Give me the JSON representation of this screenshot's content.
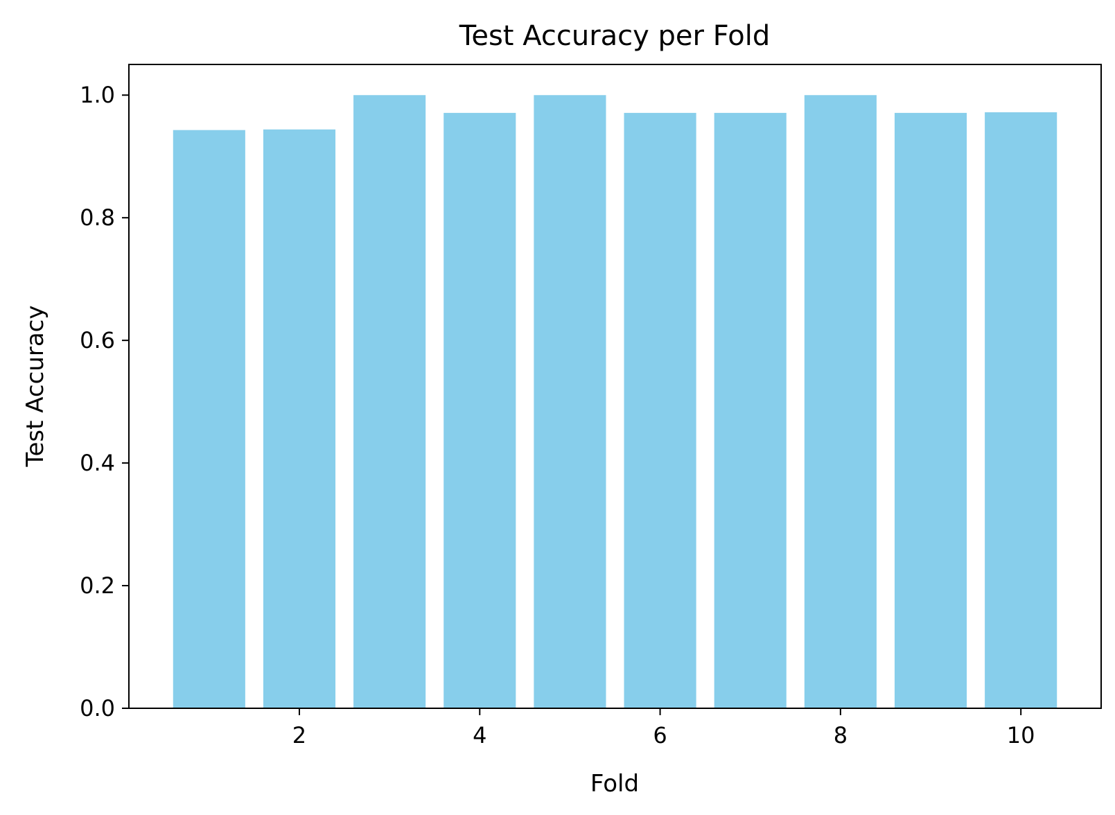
{
  "chart_data": {
    "type": "bar",
    "title": "Test Accuracy per Fold",
    "xlabel": "Fold",
    "ylabel": "Test Accuracy",
    "x": [
      1,
      2,
      3,
      4,
      5,
      6,
      7,
      8,
      9,
      10
    ],
    "values": [
      0.943,
      0.944,
      1.0,
      0.971,
      1.0,
      0.971,
      0.971,
      1.0,
      0.971,
      0.972
    ],
    "xlim": [
      0.11,
      10.89
    ],
    "ylim": [
      0,
      1.05
    ],
    "xticks": [
      2,
      4,
      6,
      8,
      10
    ],
    "xtick_labels": [
      "2",
      "4",
      "6",
      "8",
      "10"
    ],
    "yticks": [
      0.0,
      0.2,
      0.4,
      0.6,
      0.8,
      1.0
    ],
    "ytick_labels": [
      "0.0",
      "0.2",
      "0.4",
      "0.6",
      "0.8",
      "1.0"
    ],
    "bar_color": "#87CEEB",
    "grid": false,
    "legend": false
  }
}
